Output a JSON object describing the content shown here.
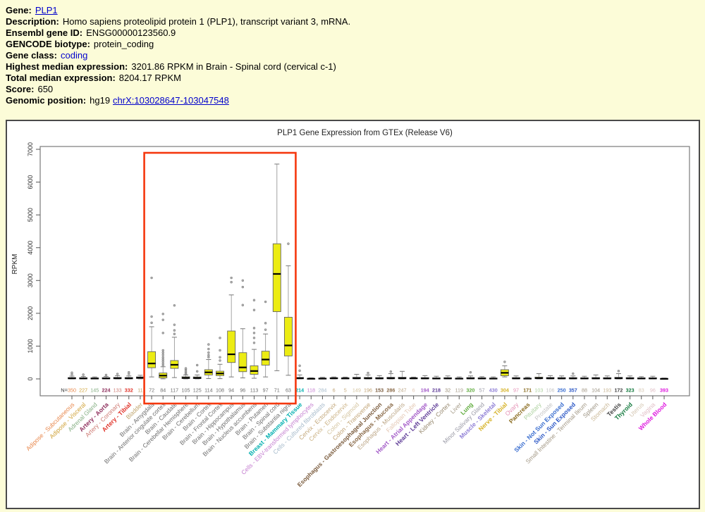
{
  "header": {
    "gene": {
      "label": "Gene:",
      "link": "PLP1"
    },
    "description": {
      "label": "Description:",
      "value": "Homo sapiens proteolipid protein 1 (PLP1), transcript variant 3, mRNA."
    },
    "ensembl": {
      "label": "Ensembl gene ID:",
      "value": "ENSG00000123560.9"
    },
    "biotype": {
      "label": "GENCODE biotype:",
      "value": "protein_coding"
    },
    "gene_class": {
      "label": "Gene class:",
      "link": "coding"
    },
    "highest": {
      "label": "Highest median expression:",
      "value": "3201.86 RPKM in Brain - Spinal cord (cervical c-1)"
    },
    "total": {
      "label": "Total median expression:",
      "value": "8204.17 RPKM"
    },
    "score": {
      "label": "Score:",
      "value": "650"
    },
    "genomic": {
      "label": "Genomic position:",
      "value": "hg19",
      "link": "chrX:103028647-103047548"
    }
  },
  "colors": {
    "page_background": "#FCFCD8",
    "panel_border": "#4A4A4A",
    "link": "#0000CC",
    "box_fill": "#ECEC13",
    "highlight_red": "#F5380E"
  },
  "chart_data": {
    "type": "boxplot",
    "title": "PLP1 Gene Expression from GTEx (Release V6)",
    "ylabel": "RPKM",
    "ylim": [
      0,
      7000
    ],
    "yticks": [
      0,
      1000,
      2000,
      3000,
      4000,
      5000,
      6000,
      7000
    ],
    "n_prefix": "N=",
    "box_fill": "#ECEC13",
    "highlight": {
      "from": "Brain - Amygdala",
      "to": "Brain - Substantia nigra",
      "color": "#F5380E"
    },
    "tissues": [
      {
        "label": "Adipose - Subcutaneous",
        "n": 350,
        "color": "#E8874B",
        "bold": false,
        "box": [
          0,
          5,
          18,
          40,
          85
        ],
        "out": [
          140,
          190
        ]
      },
      {
        "label": "Adipose - Visceral",
        "n": 227,
        "color": "#CFA135",
        "bold": false,
        "box": [
          0,
          4,
          15,
          35,
          75
        ],
        "out": [
          130
        ]
      },
      {
        "label": "Adrenal Gland",
        "n": 145,
        "color": "#85AE83",
        "bold": false,
        "box": [
          0,
          3,
          12,
          28,
          60
        ],
        "out": []
      },
      {
        "label": "Artery - Aorta",
        "n": 224,
        "color": "#8E2F5C",
        "bold": true,
        "box": [
          0,
          5,
          16,
          35,
          75
        ],
        "out": [
          120
        ]
      },
      {
        "label": "Artery - Coronary",
        "n": 133,
        "color": "#CE7A72",
        "bold": false,
        "box": [
          0,
          6,
          20,
          45,
          95
        ],
        "out": [
          150
        ]
      },
      {
        "label": "Artery - Tibial",
        "n": 332,
        "color": "#E03127",
        "bold": true,
        "box": [
          0,
          5,
          18,
          42,
          90
        ],
        "out": [
          150,
          200
        ]
      },
      {
        "label": "Bladder",
        "n": 11,
        "color": "#BFA46C",
        "bold": false,
        "box": [
          2,
          12,
          35,
          60,
          110
        ],
        "out": []
      },
      {
        "label": "Brain - Amygdala",
        "n": 72,
        "color": "#6E6E6E",
        "bold": false,
        "box": [
          60,
          340,
          470,
          830,
          1590
        ],
        "out": [
          1710,
          1900,
          3080
        ]
      },
      {
        "label": "Brain - Anterior cingulate cortex",
        "n": 84,
        "color": "#6E6E6E",
        "bold": false,
        "box": [
          2,
          30,
          100,
          180,
          370
        ],
        "out": [
          420,
          480,
          540,
          600,
          660,
          730,
          800,
          870,
          1400,
          1800,
          1980
        ]
      },
      {
        "label": "Brain - Caudate",
        "n": 117,
        "color": "#6E6E6E",
        "bold": false,
        "box": [
          40,
          320,
          430,
          560,
          1270
        ],
        "out": [
          1370,
          1480,
          1650,
          2240
        ]
      },
      {
        "label": "Brain - Cerebellar Hemisphere",
        "n": 105,
        "color": "#6E6E6E",
        "bold": false,
        "box": [
          2,
          12,
          30,
          65,
          120
        ],
        "out": [
          140,
          170,
          200,
          240,
          290,
          320
        ]
      },
      {
        "label": "Brain - Cerebellum",
        "n": 125,
        "color": "#6E6E6E",
        "bold": false,
        "box": [
          2,
          10,
          28,
          60,
          120
        ],
        "out": [
          230,
          420
        ]
      },
      {
        "label": "Brain - Cortex",
        "n": 114,
        "color": "#6E6E6E",
        "bold": false,
        "box": [
          10,
          120,
          200,
          280,
          590
        ],
        "out": [
          660,
          720,
          800,
          910,
          1050
        ]
      },
      {
        "label": "Brain - Frontal Cortex",
        "n": 108,
        "color": "#6E6E6E",
        "bold": false,
        "box": [
          8,
          100,
          165,
          235,
          445
        ],
        "out": [
          560,
          660,
          870,
          1250
        ]
      },
      {
        "label": "Brain - Hippocampus",
        "n": 94,
        "color": "#6E6E6E",
        "bold": false,
        "box": [
          60,
          500,
          750,
          1460,
          2560
        ],
        "out": [
          2950,
          3080
        ]
      },
      {
        "label": "Brain - Hypothalamus",
        "n": 96,
        "color": "#6E6E6E",
        "bold": false,
        "box": [
          30,
          220,
          350,
          800,
          1530
        ],
        "out": [
          2250,
          2800,
          3000
        ]
      },
      {
        "label": "Brain - Nucleus accumbens",
        "n": 113,
        "color": "#6E6E6E",
        "bold": false,
        "box": [
          20,
          140,
          240,
          400,
          900
        ],
        "out": [
          1100,
          1250,
          1400,
          1550,
          2100,
          2400
        ]
      },
      {
        "label": "Brain - Putamen",
        "n": 97,
        "color": "#6E6E6E",
        "bold": false,
        "box": [
          60,
          420,
          590,
          845,
          1370
        ],
        "out": [
          1500,
          1700,
          2350
        ]
      },
      {
        "label": "Brain - Spinal cord",
        "n": 71,
        "color": "#6E6E6E",
        "bold": false,
        "box": [
          250,
          2050,
          3200,
          4120,
          6550
        ],
        "out": []
      },
      {
        "label": "Brain - Substantia nigra",
        "n": 63,
        "color": "#6E6E6E",
        "bold": false,
        "box": [
          110,
          700,
          1020,
          1880,
          3450
        ],
        "out": [
          4120
        ]
      },
      {
        "label": "Breast - Mammary Tissue",
        "n": 214,
        "color": "#00AFAF",
        "bold": true,
        "box": [
          0,
          6,
          20,
          45,
          120
        ],
        "out": [
          250,
          400
        ]
      },
      {
        "label": "Cells - EBV-transformed lymphocytes",
        "n": 118,
        "color": "#C47ED0",
        "bold": false,
        "box": [
          0,
          2,
          6,
          14,
          30
        ],
        "out": []
      },
      {
        "label": "Cells - Cultured fibroblasts",
        "n": 284,
        "color": "#A6BACB",
        "bold": false,
        "box": [
          0,
          3,
          10,
          22,
          48
        ],
        "out": []
      },
      {
        "label": "Cervix - Ectocervix",
        "n": 6,
        "color": "#C2A678",
        "bold": false,
        "box": [
          2,
          8,
          18,
          35,
          60
        ],
        "out": []
      },
      {
        "label": "Cervix - Endocervix",
        "n": 5,
        "color": "#CBB183",
        "bold": false,
        "box": [
          2,
          8,
          16,
          30,
          55
        ],
        "out": []
      },
      {
        "label": "Colon - Sigmoid",
        "n": 149,
        "color": "#D4C49F",
        "bold": false,
        "box": [
          0,
          6,
          20,
          48,
          140
        ],
        "out": []
      },
      {
        "label": "Colon - Transverse",
        "n": 196,
        "color": "#BFA172",
        "bold": false,
        "box": [
          0,
          6,
          18,
          45,
          120
        ],
        "out": [
          180
        ]
      },
      {
        "label": "Esophagus - Gastroesophageal Junction",
        "n": 153,
        "color": "#7B5C3E",
        "bold": true,
        "box": [
          0,
          5,
          16,
          40,
          100
        ],
        "out": []
      },
      {
        "label": "Esophagus - Mucosa",
        "n": 286,
        "color": "#8A6A48",
        "bold": true,
        "box": [
          0,
          6,
          20,
          48,
          160
        ],
        "out": [
          220
        ]
      },
      {
        "label": "Esophagus - Muscularis",
        "n": 247,
        "color": "#BBA584",
        "bold": false,
        "box": [
          0,
          6,
          20,
          50,
          230
        ],
        "out": []
      },
      {
        "label": "Fallopian Tube",
        "n": 6,
        "color": "#E4C8B4",
        "bold": false,
        "box": [
          2,
          8,
          18,
          32,
          55
        ],
        "out": []
      },
      {
        "label": "Heart - Atrial Appendage",
        "n": 194,
        "color": "#A35BC8",
        "bold": true,
        "box": [
          0,
          5,
          16,
          38,
          100
        ],
        "out": []
      },
      {
        "label": "Heart - Left Ventricle",
        "n": 218,
        "color": "#5F3D97",
        "bold": true,
        "box": [
          0,
          4,
          12,
          30,
          80
        ],
        "out": []
      },
      {
        "label": "Kidney - Cortex",
        "n": 32,
        "color": "#97896F",
        "bold": false,
        "box": [
          0,
          5,
          15,
          35,
          90
        ],
        "out": []
      },
      {
        "label": "Liver",
        "n": 119,
        "color": "#A69B88",
        "bold": false,
        "box": [
          0,
          3,
          10,
          22,
          60
        ],
        "out": []
      },
      {
        "label": "Lung",
        "n": 320,
        "color": "#60AC3E",
        "bold": true,
        "box": [
          0,
          5,
          16,
          40,
          90
        ],
        "out": [
          200
        ]
      },
      {
        "label": "Minor Salivary Gland",
        "n": 57,
        "color": "#9A9AA6",
        "bold": false,
        "box": [
          0,
          4,
          14,
          32,
          70
        ],
        "out": []
      },
      {
        "label": "Muscle - Skeletal",
        "n": 430,
        "color": "#8F7FD6",
        "bold": true,
        "box": [
          0,
          3,
          10,
          24,
          60
        ],
        "out": []
      },
      {
        "label": "Nerve - Tibial",
        "n": 304,
        "color": "#D6B32A",
        "bold": true,
        "box": [
          60,
          95,
          185,
          280,
          400
        ],
        "out": [
          520
        ]
      },
      {
        "label": "Ovary",
        "n": 97,
        "color": "#E48FB4",
        "bold": false,
        "box": [
          0,
          5,
          16,
          38,
          90
        ],
        "out": []
      },
      {
        "label": "Pancreas",
        "n": 171,
        "color": "#8A6C20",
        "bold": true,
        "box": [
          0,
          3,
          10,
          22,
          50
        ],
        "out": []
      },
      {
        "label": "Pituitary",
        "n": 103,
        "color": "#ACD19E",
        "bold": false,
        "box": [
          0,
          7,
          22,
          55,
          160
        ],
        "out": []
      },
      {
        "label": "Prostate",
        "n": 106,
        "color": "#C3C3C3",
        "bold": false,
        "box": [
          0,
          6,
          18,
          42,
          100
        ],
        "out": []
      },
      {
        "label": "Skin - Not Sun Exposed",
        "n": 250,
        "color": "#3C6FD0",
        "bold": true,
        "box": [
          0,
          5,
          16,
          38,
          90
        ],
        "out": []
      },
      {
        "label": "Skin - Sun Exposed",
        "n": 357,
        "color": "#2E59C6",
        "bold": true,
        "box": [
          0,
          5,
          16,
          38,
          90
        ],
        "out": [
          160
        ]
      },
      {
        "label": "Small Intestine - Terminal Ileum",
        "n": 88,
        "color": "#A29784",
        "bold": false,
        "box": [
          0,
          5,
          14,
          32,
          80
        ],
        "out": []
      },
      {
        "label": "Spleen",
        "n": 104,
        "color": "#9B9281",
        "bold": false,
        "box": [
          0,
          5,
          16,
          40,
          120
        ],
        "out": []
      },
      {
        "label": "Stomach",
        "n": 193,
        "color": "#C8B694",
        "bold": false,
        "box": [
          0,
          5,
          15,
          36,
          90
        ],
        "out": []
      },
      {
        "label": "Testis",
        "n": 172,
        "color": "#424242",
        "bold": true,
        "box": [
          0,
          6,
          20,
          48,
          160
        ],
        "out": [
          240
        ]
      },
      {
        "label": "Thyroid",
        "n": 323,
        "color": "#12793D",
        "bold": true,
        "box": [
          0,
          5,
          16,
          38,
          90
        ],
        "out": []
      },
      {
        "label": "Uterus",
        "n": 83,
        "color": "#D5C7B3",
        "bold": false,
        "box": [
          0,
          4,
          13,
          30,
          70
        ],
        "out": []
      },
      {
        "label": "Vagina",
        "n": 96,
        "color": "#E0BEC5",
        "bold": false,
        "box": [
          0,
          4,
          14,
          32,
          80
        ],
        "out": []
      },
      {
        "label": "Whole Blood",
        "n": 393,
        "color": "#DF19DF",
        "bold": true,
        "box": [
          0,
          1,
          4,
          10,
          25
        ],
        "out": []
      }
    ]
  }
}
